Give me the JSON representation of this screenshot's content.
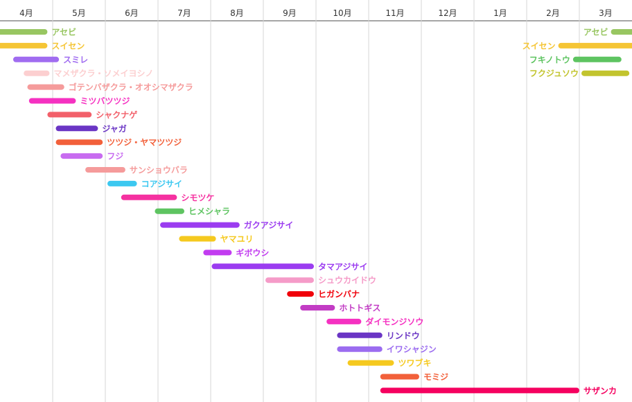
{
  "chart_data": {
    "type": "gantt",
    "months": [
      "4月",
      "5月",
      "6月",
      "7月",
      "8月",
      "9月",
      "10月",
      "11月",
      "12月",
      "1月",
      "2月",
      "3月"
    ],
    "grid": true,
    "bars": [
      {
        "name": "アセビ",
        "start": 0.0,
        "end": 0.9,
        "color": "#98c661",
        "label_side": "right"
      },
      {
        "name": "スイセン",
        "start": 0.0,
        "end": 0.9,
        "color": "#f5c535",
        "label_side": "right"
      },
      {
        "name": "スミレ",
        "start": 0.25,
        "end": 1.12,
        "color": "#a06cf0",
        "label_side": "right"
      },
      {
        "name": "マメザクラ・ソメイヨシノ",
        "start": 0.45,
        "end": 0.94,
        "color": "#fccfd0",
        "label_side": "right"
      },
      {
        "name": "ゴテンバザクラ・オオシマザクラ",
        "start": 0.52,
        "end": 1.22,
        "color": "#f59b9b",
        "label_side": "right"
      },
      {
        "name": "ミツバツツジ",
        "start": 0.55,
        "end": 1.44,
        "color": "#f531c1",
        "label_side": "right"
      },
      {
        "name": "シャクナゲ",
        "start": 0.9,
        "end": 1.74,
        "color": "#f2606a",
        "label_side": "right"
      },
      {
        "name": "ジャガ",
        "start": 1.06,
        "end": 1.86,
        "color": "#6a35c4",
        "label_side": "right"
      },
      {
        "name": "ツツジ・ヤマツツジ",
        "start": 1.06,
        "end": 1.95,
        "color": "#f2603a",
        "label_side": "right"
      },
      {
        "name": "フジ",
        "start": 1.15,
        "end": 1.95,
        "color": "#c86cf0",
        "label_side": "right"
      },
      {
        "name": "サンショウバラ",
        "start": 1.62,
        "end": 2.38,
        "color": "#f59b9b",
        "label_side": "right"
      },
      {
        "name": "コアジサイ",
        "start": 2.04,
        "end": 2.6,
        "color": "#3cc8f0",
        "label_side": "right"
      },
      {
        "name": "シモツケ",
        "start": 2.3,
        "end": 3.36,
        "color": "#f531a0",
        "label_side": "right"
      },
      {
        "name": "ヒメシャラ",
        "start": 2.94,
        "end": 3.5,
        "color": "#5ec461",
        "label_side": "right"
      },
      {
        "name": "ガクアジサイ",
        "start": 3.04,
        "end": 4.55,
        "color": "#9b3cf0",
        "label_side": "right"
      },
      {
        "name": "ヤマユリ",
        "start": 3.4,
        "end": 4.1,
        "color": "#f5c91f",
        "label_side": "right"
      },
      {
        "name": "ギボウシ",
        "start": 3.86,
        "end": 4.4,
        "color": "#c23cf0",
        "label_side": "right"
      },
      {
        "name": "タマアジサイ",
        "start": 4.02,
        "end": 5.96,
        "color": "#9b3cf0",
        "label_side": "right"
      },
      {
        "name": "シュウカイドウ",
        "start": 5.04,
        "end": 5.96,
        "color": "#f59bc8",
        "label_side": "right"
      },
      {
        "name": "ヒガンバナ",
        "start": 5.45,
        "end": 5.96,
        "color": "#f0000a",
        "label_side": "right"
      },
      {
        "name": "ホトトギス",
        "start": 5.7,
        "end": 6.36,
        "color": "#c23cc4",
        "label_side": "right"
      },
      {
        "name": "ダイモンジソウ",
        "start": 6.2,
        "end": 6.86,
        "color": "#f531c1",
        "label_side": "right"
      },
      {
        "name": "リンドウ",
        "start": 6.4,
        "end": 7.26,
        "color": "#6a35c4",
        "label_side": "right"
      },
      {
        "name": "イワシャジン",
        "start": 6.4,
        "end": 7.26,
        "color": "#9b6cf0",
        "label_side": "right"
      },
      {
        "name": "ツワブキ",
        "start": 6.6,
        "end": 7.48,
        "color": "#f5c91f",
        "label_side": "right"
      },
      {
        "name": "モミジ",
        "start": 7.22,
        "end": 7.96,
        "color": "#f2603a",
        "label_side": "right"
      },
      {
        "name": "サザンカ",
        "start": 7.22,
        "end": 11.0,
        "color": "#f5005f",
        "label_side": "right"
      },
      {
        "name": "アセビ",
        "start": 11.6,
        "end": 12.0,
        "row": 0,
        "color": "#98c661",
        "label_side": "left"
      },
      {
        "name": "スイセン",
        "start": 10.6,
        "end": 12.0,
        "row": 1,
        "color": "#f5c535",
        "label_side": "left"
      },
      {
        "name": "フキノトウ",
        "start": 10.88,
        "end": 11.8,
        "row": 2,
        "color": "#5ec461",
        "label_side": "left"
      },
      {
        "name": "フクジュソウ",
        "start": 11.04,
        "end": 11.95,
        "row": 3,
        "color": "#c2c42e",
        "label_side": "left"
      }
    ]
  }
}
